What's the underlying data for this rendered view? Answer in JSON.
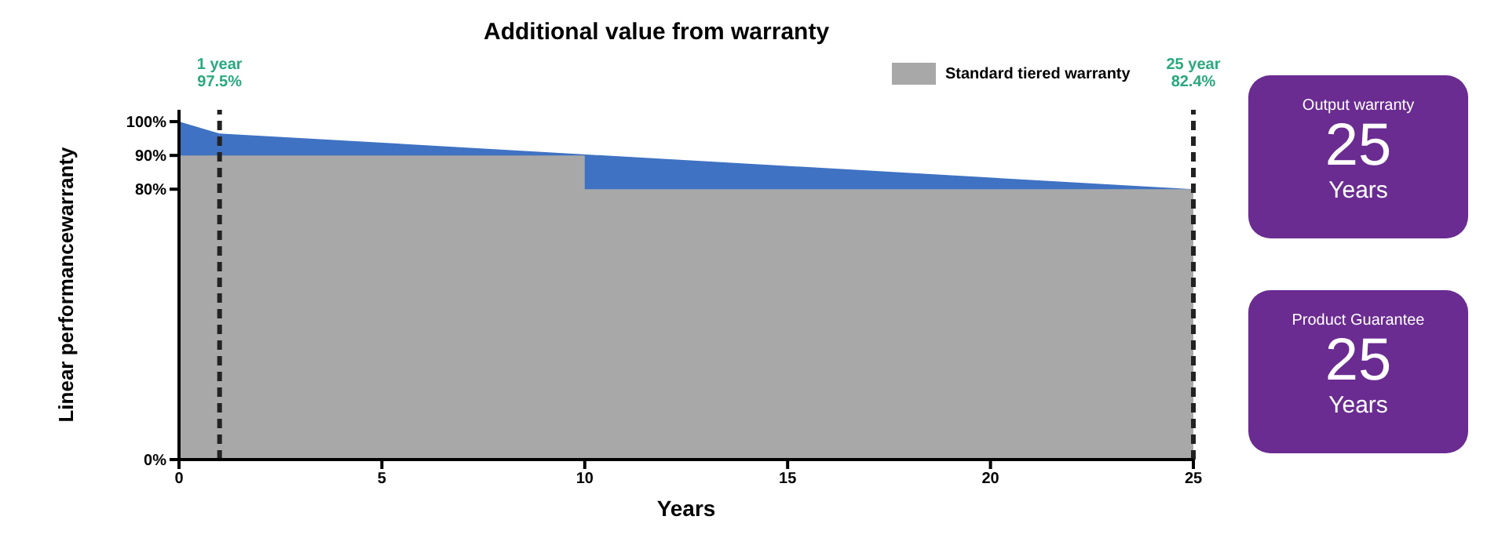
{
  "chart_data": {
    "type": "area",
    "title": "Additional value from warranty",
    "xlabel": "Years",
    "ylabel": "Linear performancewarranty",
    "series": [
      {
        "color": "#3f72c2",
        "x": [
          0,
          1,
          25
        ],
        "values": [
          100,
          96.5,
          80
        ]
      },
      {
        "name": "Standard tiered warranty",
        "color": "#a8a8a8",
        "x": [
          0,
          10,
          10,
          25
        ],
        "values": [
          90,
          90,
          80,
          80
        ]
      }
    ],
    "xlim": [
      0,
      25
    ],
    "xticks": [
      0,
      5,
      10,
      15,
      20,
      25
    ],
    "ylim": [
      0,
      103.5
    ],
    "yticks": [
      {
        "value": 0,
        "label": "0%"
      },
      {
        "value": 80,
        "label": "80%"
      },
      {
        "value": 90,
        "label": "90%"
      },
      {
        "value": 100,
        "label": "100%"
      }
    ],
    "ref_lines": [
      {
        "axis": "x",
        "value": 1,
        "label": "1 year\n97.5%",
        "color": "#222222",
        "line_style": "dashed"
      },
      {
        "axis": "x",
        "value": 25,
        "label": "25 year\n82.4%",
        "color": "#222222",
        "line_style": "dashed"
      }
    ],
    "legend": "top right",
    "grid": false,
    "annotations": [
      "Output warranty",
      "25",
      "Years",
      "Product Guarantee",
      "25",
      "Years"
    ]
  }
}
